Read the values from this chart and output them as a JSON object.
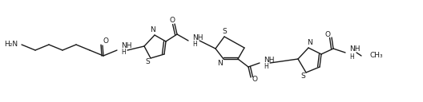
{
  "bg_color": "#ffffff",
  "line_color": "#1a1a1a",
  "line_width": 1.0,
  "font_size": 6.5,
  "figsize": [
    5.28,
    1.28
  ],
  "dpi": 100,
  "ylim": [
    0,
    128
  ],
  "xlim": [
    0,
    528
  ]
}
